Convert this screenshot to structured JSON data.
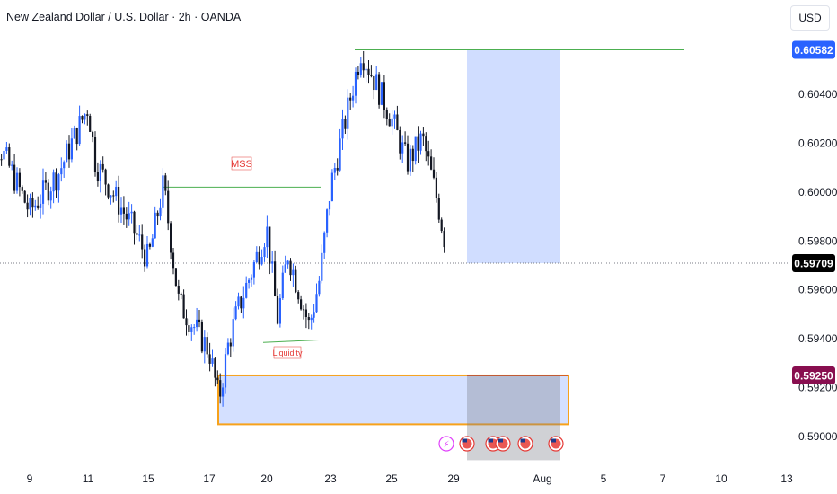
{
  "header": {
    "title": "New Zealand Dollar / U.S. Dollar · 2h · OANDA",
    "currency": "USD"
  },
  "price_badges": [
    {
      "name": "target-price-badge",
      "value": "0.60582",
      "price": 0.60582,
      "color": "#2962ff"
    },
    {
      "name": "current-price-badge",
      "value": "0.59709",
      "price": 0.59709,
      "color": "#000000"
    },
    {
      "name": "stop-price-badge",
      "value": "0.59250",
      "price": 0.5925,
      "color": "#880e4f"
    }
  ],
  "annotations": {
    "mss_label": "MSS",
    "liquidity_label": "Liquidity"
  },
  "colors": {
    "bull": "#2962ff",
    "bear": "#131722",
    "target_zone": "#2962ff",
    "demand_zone_border": "#f7a21b",
    "level_line": "#4caf50",
    "mss_text": "#e53935"
  },
  "chart_data": {
    "type": "candlestick",
    "instrument": "NZD/USD",
    "timeframe": "2h",
    "y_ticks": [
      0.604,
      0.602,
      0.6,
      0.598,
      0.596,
      0.594,
      0.592,
      0.59
    ],
    "y_tick_labels": [
      "0.60400",
      "0.60200",
      "0.60000",
      "0.59800",
      "0.59600",
      "0.59400",
      "0.59200",
      "0.59000"
    ],
    "ylim": [
      0.5888,
      0.6074
    ],
    "x_ticks": [
      {
        "label": "9",
        "date": "2025-07-09"
      },
      {
        "label": "11",
        "date": "2025-07-11"
      },
      {
        "label": "15",
        "date": "2025-07-15"
      },
      {
        "label": "17",
        "date": "2025-07-17"
      },
      {
        "label": "20",
        "date": "2025-07-20"
      },
      {
        "label": "23",
        "date": "2025-07-23"
      },
      {
        "label": "25",
        "date": "2025-07-25"
      },
      {
        "label": "29",
        "date": "2025-07-29"
      },
      {
        "label": "Aug",
        "date": "2025-08-01"
      },
      {
        "label": "5",
        "date": "2025-08-05"
      },
      {
        "label": "7",
        "date": "2025-08-07"
      },
      {
        "label": "10",
        "date": "2025-08-10"
      },
      {
        "label": "13",
        "date": "2025-08-13"
      }
    ],
    "close_path": [
      {
        "d": "2025-07-08",
        "p": 0.6018
      },
      {
        "d": "2025-07-09",
        "p": 0.5992
      },
      {
        "d": "2025-07-10",
        "p": 0.6008
      },
      {
        "d": "2025-07-11",
        "p": 0.6035
      },
      {
        "d": "2025-07-11",
        "p": 0.6012
      },
      {
        "d": "2025-07-14",
        "p": 0.5985
      },
      {
        "d": "2025-07-15",
        "p": 0.5972
      },
      {
        "d": "2025-07-15",
        "p": 0.6003
      },
      {
        "d": "2025-07-16",
        "p": 0.5955
      },
      {
        "d": "2025-07-17",
        "p": 0.5935
      },
      {
        "d": "2025-07-17",
        "p": 0.5915
      },
      {
        "d": "2025-07-18",
        "p": 0.5938
      },
      {
        "d": "2025-07-18",
        "p": 0.5952
      },
      {
        "d": "2025-07-20",
        "p": 0.5985
      },
      {
        "d": "2025-07-20",
        "p": 0.5948
      },
      {
        "d": "2025-07-21",
        "p": 0.5975
      },
      {
        "d": "2025-07-22",
        "p": 0.5945
      },
      {
        "d": "2025-07-22",
        "p": 0.5965
      },
      {
        "d": "2025-07-23",
        "p": 0.6002
      },
      {
        "d": "2025-07-23",
        "p": 0.603
      },
      {
        "d": "2025-07-24",
        "p": 0.6058
      },
      {
        "d": "2025-07-25",
        "p": 0.603
      },
      {
        "d": "2025-07-26",
        "p": 0.6012
      },
      {
        "d": "2025-07-27",
        "p": 0.6022
      },
      {
        "d": "2025-07-28",
        "p": 0.5995
      },
      {
        "d": "2025-07-28",
        "p": 0.5978
      },
      {
        "d": "2025-07-29",
        "p": 0.59709
      }
    ],
    "levels": {
      "current_price": 0.59709,
      "target": 0.60582,
      "mss_level": 0.6002,
      "liquidity_low": 0.594,
      "stop": 0.5925,
      "demand_zone_top": 0.5925,
      "demand_zone_bottom": 0.5905
    },
    "zones": [
      {
        "name": "target-zone",
        "from": "2025-07-30",
        "to": "2025-08-02",
        "top": 0.60582,
        "bottom": 0.59709
      },
      {
        "name": "demand-zone",
        "from": "2025-07-17",
        "to": "2025-08-02",
        "top": 0.5925,
        "bottom": 0.5905
      }
    ],
    "grid": false
  }
}
